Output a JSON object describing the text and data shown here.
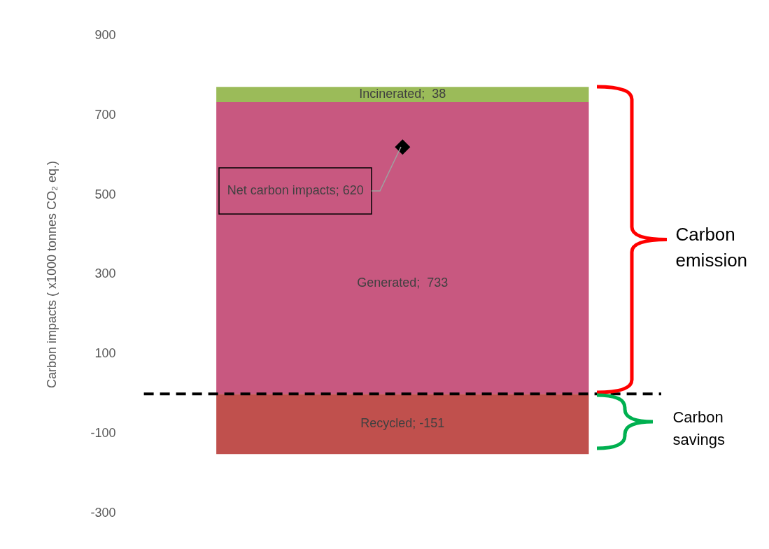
{
  "chart_data": {
    "type": "bar",
    "stacked": true,
    "categories": [
      null
    ],
    "ylabel": "Carbon impacts ( x1000 tonnes CO₂ eq.)",
    "ylim": [
      -300,
      900
    ],
    "yticks": [
      -300,
      -100,
      100,
      300,
      500,
      700,
      900
    ],
    "grid": false,
    "legend": false,
    "marker": "diamond",
    "series": [
      {
        "color": "#c85880",
        "values": [
          733
        ],
        "value_labels": [
          "Generated;  733"
        ]
      },
      {
        "color": "#9bbb59",
        "values": [
          38
        ],
        "value_labels": [
          "Incinerated;  38"
        ]
      },
      {
        "color": "#c0504d",
        "values": [
          -151
        ],
        "value_labels": [
          "Recycled; -151"
        ]
      },
      {
        "type": "scatter",
        "color": "#000000",
        "values": [
          620
        ],
        "value_labels": [
          "Net carbon impacts; 620"
        ]
      }
    ],
    "ref_lines": [
      {
        "axis": "y",
        "value": 0,
        "color": "#000000",
        "line_style": "dashed"
      }
    ],
    "annotations": [
      "Carbon emission",
      "Carbon savings"
    ]
  }
}
